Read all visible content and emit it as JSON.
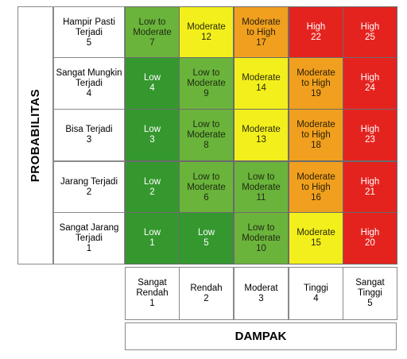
{
  "y_axis_title": "PROBABILITAS",
  "x_axis_title": "DAMPAK",
  "colors": {
    "Low": "#35982f",
    "Low to Moderate": "#6bb43c",
    "Moderate": "#f2ef1c",
    "Moderate to High": "#f0a01e",
    "High": "#e4231f"
  },
  "text_colors": {
    "Low": "#ffffff",
    "Low to Moderate": "#1d2a10",
    "Moderate": "#2a2a10",
    "Moderate to High": "#2a1d08",
    "High": "#ffffff"
  },
  "probability_levels": [
    {
      "lines": [
        "Hampir Pasti",
        "Terjadi",
        "5"
      ]
    },
    {
      "lines": [
        "Sangat Mungkin",
        "Terjadi",
        "4"
      ]
    },
    {
      "lines": [
        "Bisa Terjadi",
        "3"
      ]
    },
    {
      "lines": [
        "Jarang Terjadi",
        "2"
      ]
    },
    {
      "lines": [
        "Sangat Jarang",
        "Terjadi",
        "1"
      ]
    }
  ],
  "impact_levels": [
    {
      "lines": [
        "Sangat",
        "Rendah",
        "1"
      ]
    },
    {
      "lines": [
        "Rendah",
        "2"
      ]
    },
    {
      "lines": [
        "Moderat",
        "3"
      ]
    },
    {
      "lines": [
        "Tinggi",
        "4"
      ]
    },
    {
      "lines": [
        "Sangat",
        "Tinggi",
        "5"
      ]
    }
  ],
  "matrix": [
    [
      {
        "level": "Low to Moderate",
        "lines": [
          "Low to",
          "Moderate"
        ],
        "score": "7"
      },
      {
        "level": "Moderate",
        "lines": [
          "Moderate"
        ],
        "score": "12"
      },
      {
        "level": "Moderate to High",
        "lines": [
          "Moderate",
          "to High"
        ],
        "score": "17"
      },
      {
        "level": "High",
        "lines": [
          "High"
        ],
        "score": "22"
      },
      {
        "level": "High",
        "lines": [
          "High"
        ],
        "score": "25"
      }
    ],
    [
      {
        "level": "Low",
        "lines": [
          "Low"
        ],
        "score": "4"
      },
      {
        "level": "Low to Moderate",
        "lines": [
          "Low to",
          "Moderate"
        ],
        "score": "9"
      },
      {
        "level": "Moderate",
        "lines": [
          "Moderate"
        ],
        "score": "14"
      },
      {
        "level": "Moderate to High",
        "lines": [
          "Moderate",
          "to High"
        ],
        "score": "19"
      },
      {
        "level": "High",
        "lines": [
          "High"
        ],
        "score": "24"
      }
    ],
    [
      {
        "level": "Low",
        "lines": [
          "Low"
        ],
        "score": "3"
      },
      {
        "level": "Low to Moderate",
        "lines": [
          "Low to",
          "Moderate"
        ],
        "score": "8"
      },
      {
        "level": "Moderate",
        "lines": [
          "Moderate"
        ],
        "score": "13"
      },
      {
        "level": "Moderate to High",
        "lines": [
          "Moderate",
          "to High"
        ],
        "score": "18"
      },
      {
        "level": "High",
        "lines": [
          "High"
        ],
        "score": "23"
      }
    ],
    [
      {
        "level": "Low",
        "lines": [
          "Low"
        ],
        "score": "2"
      },
      {
        "level": "Low to Moderate",
        "lines": [
          "Low to",
          "Moderate"
        ],
        "score": "6"
      },
      {
        "level": "Low to Moderate",
        "lines": [
          "Low to",
          "Moderate"
        ],
        "score": "11"
      },
      {
        "level": "Moderate to High",
        "lines": [
          "Moderate",
          "to High"
        ],
        "score": "16"
      },
      {
        "level": "High",
        "lines": [
          "High"
        ],
        "score": "21"
      }
    ],
    [
      {
        "level": "Low",
        "lines": [
          "Low"
        ],
        "score": "1"
      },
      {
        "level": "Low",
        "lines": [
          "Low"
        ],
        "score": "5"
      },
      {
        "level": "Low to Moderate",
        "lines": [
          "Low to",
          "Moderate"
        ],
        "score": "10"
      },
      {
        "level": "Moderate",
        "lines": [
          "Moderate"
        ],
        "score": "15"
      },
      {
        "level": "High",
        "lines": [
          "High"
        ],
        "score": "20"
      }
    ]
  ]
}
